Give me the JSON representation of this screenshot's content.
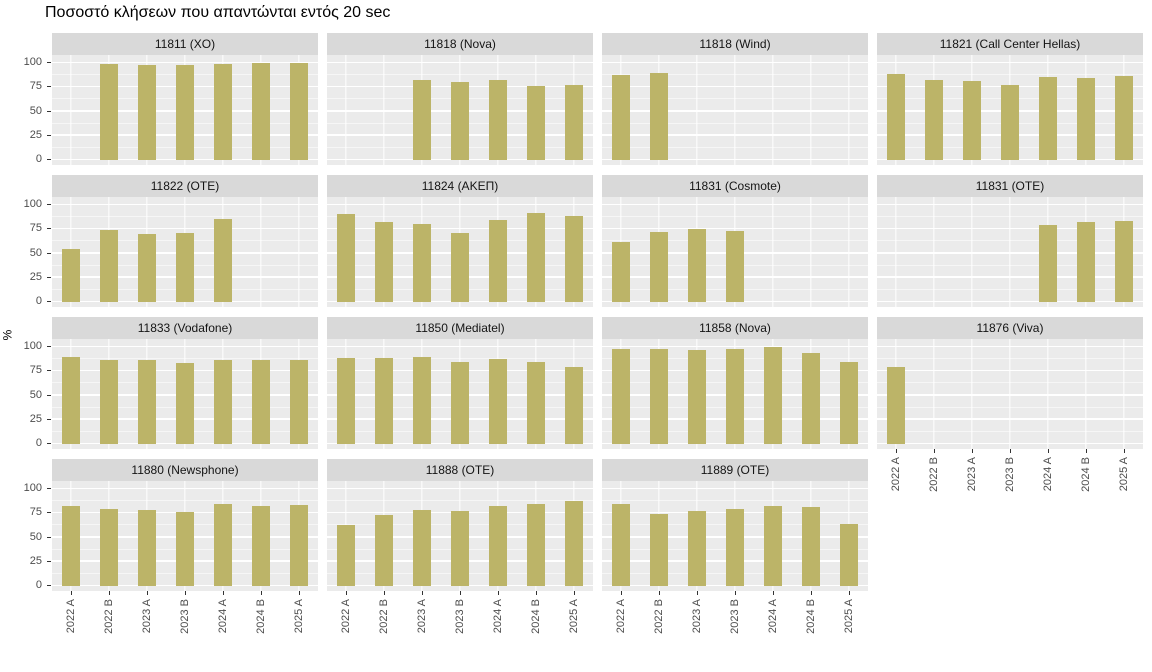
{
  "title": "Ποσοστό κλήσεων που απαντώνται εντός 20 sec",
  "chart_data": {
    "type": "bar",
    "title": "Ποσοστό κλήσεων που απαντώνται εντός 20 sec",
    "xlabel": "",
    "ylabel": "%",
    "ylim": [
      0,
      100
    ],
    "yticks": [
      0,
      25,
      50,
      75,
      100
    ],
    "grid": true,
    "legend": false,
    "facet_layout": {
      "columns": 4,
      "rows": 4
    },
    "categories": [
      "2022 A",
      "2022 B",
      "2023 A",
      "2023 B",
      "2024 A",
      "2024 B",
      "2025 A"
    ],
    "facets": [
      {
        "label": "11811 (XO)",
        "values": [
          null,
          99,
          98,
          98,
          99,
          100,
          100
        ]
      },
      {
        "label": "11818 (Nova)",
        "values": [
          null,
          null,
          82,
          80,
          83,
          76,
          77
        ]
      },
      {
        "label": "11818 (Wind)",
        "values": [
          88,
          90,
          null,
          null,
          null,
          null,
          null
        ]
      },
      {
        "label": "11821 (Call Center Hellas)",
        "values": [
          89,
          82,
          81,
          77,
          86,
          85,
          87
        ]
      },
      {
        "label": "11822 (OTE)",
        "values": [
          55,
          74,
          70,
          71,
          86,
          null,
          null
        ]
      },
      {
        "label": "11824 (ΑΚΕΠ)",
        "values": [
          91,
          82,
          80,
          71,
          85,
          92,
          89
        ]
      },
      {
        "label": "11831 (Cosmote)",
        "values": [
          62,
          72,
          75,
          73,
          null,
          null,
          null
        ]
      },
      {
        "label": "11831 (OTE)",
        "values": [
          null,
          null,
          null,
          null,
          79,
          82,
          84
        ]
      },
      {
        "label": "11833 (Vodafone)",
        "values": [
          90,
          87,
          87,
          84,
          87,
          87,
          87
        ]
      },
      {
        "label": "11850 (Mediatel)",
        "values": [
          89,
          89,
          90,
          85,
          88,
          85,
          79
        ]
      },
      {
        "label": "11858 (Nova)",
        "values": [
          98,
          98,
          97,
          98,
          100,
          94,
          85
        ]
      },
      {
        "label": "11876 (Viva)",
        "values": [
          79,
          null,
          null,
          null,
          null,
          null,
          null
        ]
      },
      {
        "label": "11880 (Newsphone)",
        "values": [
          82,
          79,
          78,
          76,
          85,
          83,
          84
        ]
      },
      {
        "label": "11888 (OTE)",
        "values": [
          63,
          73,
          78,
          77,
          83,
          85,
          88
        ]
      },
      {
        "label": "11889 (OTE)",
        "values": [
          85,
          74,
          77,
          79,
          82,
          81,
          64
        ]
      }
    ],
    "colors": {
      "bar": "#BCB468",
      "panel_bg": "#EBEBEB",
      "strip_bg": "#D9D9D9",
      "grid_line": "#FFFFFF",
      "axis_text": "#4D4D4D",
      "title_text": "#000000"
    }
  }
}
